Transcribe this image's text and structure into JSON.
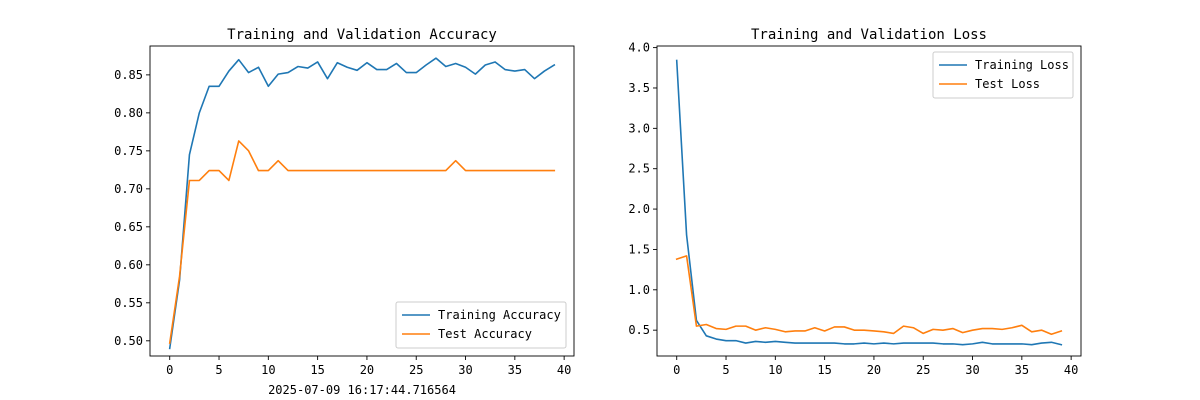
{
  "timestamp": "2025-07-09 16:17:44.716564",
  "colors": {
    "training": "#1f77b4",
    "test": "#ff7f0e",
    "axis": "#000000",
    "legend_border": "#cccccc"
  },
  "chart_data": [
    {
      "type": "line",
      "title": "Training and Validation Accuracy",
      "xlabel": "",
      "ylabel": "",
      "xlim": [
        -2,
        41
      ],
      "ylim": [
        0.48,
        0.888
      ],
      "xticks": [
        0,
        5,
        10,
        15,
        20,
        25,
        30,
        35,
        40
      ],
      "xtick_labels": [
        "0",
        "5",
        "10",
        "15",
        "20",
        "25",
        "30",
        "35",
        "40"
      ],
      "yticks": [
        0.5,
        0.55,
        0.6,
        0.65,
        0.7,
        0.75,
        0.8,
        0.85
      ],
      "ytick_labels": [
        "0.50",
        "0.55",
        "0.60",
        "0.65",
        "0.70",
        "0.75",
        "0.80",
        "0.85"
      ],
      "grid": false,
      "legend_position": "lower-right",
      "x": [
        0,
        1,
        2,
        3,
        4,
        5,
        6,
        7,
        8,
        9,
        10,
        11,
        12,
        13,
        14,
        15,
        16,
        17,
        18,
        19,
        20,
        21,
        22,
        23,
        24,
        25,
        26,
        27,
        28,
        29,
        30,
        31,
        32,
        33,
        34,
        35,
        36,
        37,
        38,
        39
      ],
      "series": [
        {
          "name": "Training Accuracy",
          "values": [
            0.49,
            0.58,
            0.745,
            0.8,
            0.835,
            0.835,
            0.855,
            0.87,
            0.853,
            0.86,
            0.835,
            0.851,
            0.853,
            0.861,
            0.859,
            0.867,
            0.845,
            0.866,
            0.86,
            0.856,
            0.866,
            0.857,
            0.857,
            0.865,
            0.853,
            0.853,
            0.863,
            0.872,
            0.861,
            0.865,
            0.86,
            0.851,
            0.863,
            0.867,
            0.857,
            0.855,
            0.857,
            0.845,
            0.855,
            0.863
          ]
        },
        {
          "name": "Test Accuracy",
          "values": [
            0.497,
            0.585,
            0.711,
            0.711,
            0.724,
            0.724,
            0.711,
            0.763,
            0.75,
            0.724,
            0.724,
            0.737,
            0.724,
            0.724,
            0.724,
            0.724,
            0.724,
            0.724,
            0.724,
            0.724,
            0.724,
            0.724,
            0.724,
            0.724,
            0.724,
            0.724,
            0.724,
            0.724,
            0.724,
            0.737,
            0.724,
            0.724,
            0.724,
            0.724,
            0.724,
            0.724,
            0.724,
            0.724,
            0.724,
            0.724
          ]
        }
      ]
    },
    {
      "type": "line",
      "title": "Training and Validation Loss",
      "xlabel": "",
      "ylabel": "",
      "xlim": [
        -2,
        41
      ],
      "ylim": [
        0.18,
        4.02
      ],
      "xticks": [
        0,
        5,
        10,
        15,
        20,
        25,
        30,
        35,
        40
      ],
      "xtick_labels": [
        "0",
        "5",
        "10",
        "15",
        "20",
        "25",
        "30",
        "35",
        "40"
      ],
      "yticks": [
        0.5,
        1.0,
        1.5,
        2.0,
        2.5,
        3.0,
        3.5,
        4.0
      ],
      "ytick_labels": [
        "0.5",
        "1.0",
        "1.5",
        "2.0",
        "2.5",
        "3.0",
        "3.5",
        "4.0"
      ],
      "grid": false,
      "legend_position": "top-right",
      "x": [
        0,
        1,
        2,
        3,
        4,
        5,
        6,
        7,
        8,
        9,
        10,
        11,
        12,
        13,
        14,
        15,
        16,
        17,
        18,
        19,
        20,
        21,
        22,
        23,
        24,
        25,
        26,
        27,
        28,
        29,
        30,
        31,
        32,
        33,
        34,
        35,
        36,
        37,
        38,
        39
      ],
      "series": [
        {
          "name": "Training Loss",
          "values": [
            3.84,
            1.68,
            0.62,
            0.43,
            0.39,
            0.37,
            0.37,
            0.34,
            0.36,
            0.35,
            0.36,
            0.35,
            0.34,
            0.34,
            0.34,
            0.34,
            0.34,
            0.33,
            0.33,
            0.34,
            0.33,
            0.34,
            0.33,
            0.34,
            0.34,
            0.34,
            0.34,
            0.33,
            0.33,
            0.32,
            0.33,
            0.35,
            0.33,
            0.33,
            0.33,
            0.33,
            0.32,
            0.34,
            0.35,
            0.32
          ]
        },
        {
          "name": "Test Loss",
          "values": [
            1.38,
            1.42,
            0.55,
            0.57,
            0.52,
            0.51,
            0.55,
            0.55,
            0.5,
            0.53,
            0.51,
            0.48,
            0.49,
            0.49,
            0.53,
            0.49,
            0.54,
            0.54,
            0.5,
            0.5,
            0.49,
            0.48,
            0.46,
            0.55,
            0.53,
            0.46,
            0.51,
            0.5,
            0.52,
            0.47,
            0.5,
            0.52,
            0.52,
            0.51,
            0.53,
            0.56,
            0.48,
            0.5,
            0.45,
            0.49
          ]
        }
      ]
    }
  ]
}
